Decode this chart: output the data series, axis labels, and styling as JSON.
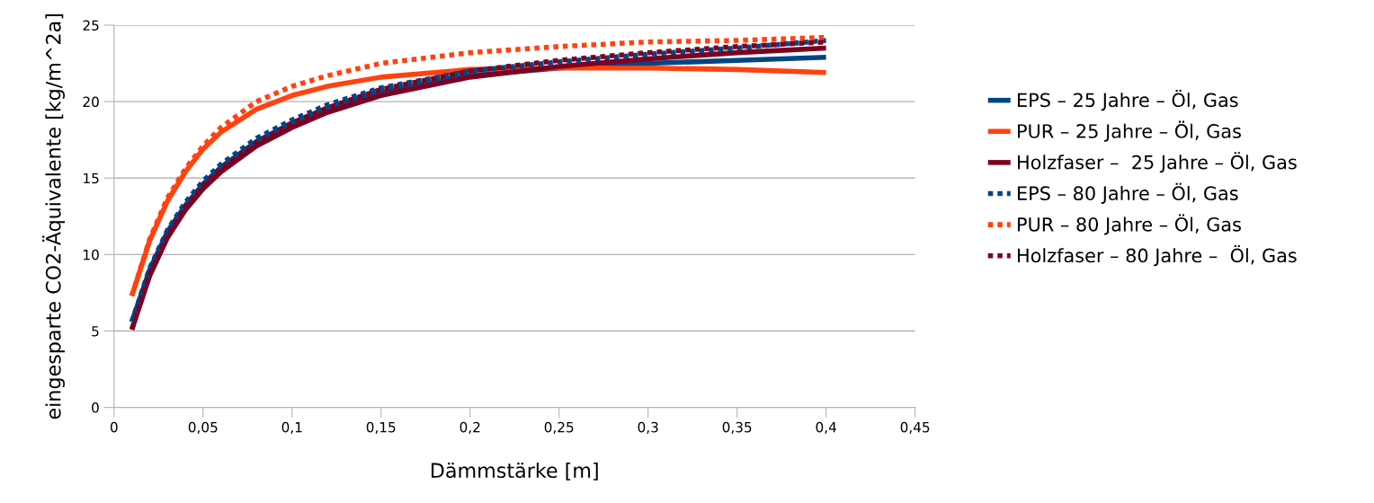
{
  "chart_data": {
    "type": "line",
    "xlabel": "Dämmstärke [m]",
    "ylabel": "eingesparte CO2-Äquivalente [kg/m^2a]",
    "x": [
      0.01,
      0.02,
      0.03,
      0.04,
      0.05,
      0.06,
      0.08,
      0.1,
      0.12,
      0.15,
      0.2,
      0.25,
      0.3,
      0.35,
      0.4
    ],
    "xlim": [
      0,
      0.45
    ],
    "xticks": [
      0,
      {
        "value": 0.05,
        "label": "0,05"
      },
      {
        "value": 0.1,
        "label": "0,1"
      },
      {
        "value": 0.15,
        "label": "0,15"
      },
      {
        "value": 0.2,
        "label": "0,2"
      },
      {
        "value": 0.25,
        "label": "0,25"
      },
      {
        "value": 0.3,
        "label": "0,3"
      },
      {
        "value": 0.35,
        "label": "0,35"
      },
      {
        "value": 0.4,
        "label": "0,4"
      },
      {
        "value": 0.45,
        "label": "0,45"
      }
    ],
    "ylim": [
      0,
      25
    ],
    "yticks": [
      0,
      5,
      10,
      15,
      20,
      25
    ],
    "grid": "y",
    "legend": "right",
    "marker": "none",
    "series": [
      {
        "name": "EPS – 25 Jahre – Öl, Gas",
        "color": "#004586",
        "line_style": "solid",
        "values": [
          5.6,
          9.0,
          11.5,
          13.2,
          14.6,
          15.7,
          17.4,
          18.6,
          19.5,
          20.6,
          21.7,
          22.2,
          22.5,
          22.7,
          22.9
        ]
      },
      {
        "name": "PUR – 25 Jahre – Öl, Gas",
        "color": "#ff420e",
        "line_style": "solid",
        "values": [
          7.3,
          10.9,
          13.5,
          15.4,
          16.9,
          18.0,
          19.5,
          20.4,
          21.0,
          21.6,
          22.1,
          22.2,
          22.2,
          22.1,
          21.9
        ]
      },
      {
        "name": "Holzfaser –  25 Jahre – Öl, Gas",
        "color": "#7e0021",
        "line_style": "solid",
        "values": [
          5.1,
          8.6,
          11.1,
          12.9,
          14.3,
          15.4,
          17.1,
          18.3,
          19.3,
          20.4,
          21.6,
          22.3,
          22.8,
          23.2,
          23.5
        ]
      },
      {
        "name": "EPS – 80 Jahre – Öl, Gas",
        "color": "#004586",
        "line_style": "dotted",
        "values": [
          5.6,
          9.1,
          11.6,
          13.4,
          14.8,
          15.9,
          17.6,
          18.8,
          19.8,
          20.9,
          22.0,
          22.6,
          23.1,
          23.5,
          24.0
        ]
      },
      {
        "name": "PUR – 80 Jahre – Öl, Gas",
        "color": "#ff420e",
        "line_style": "dotted",
        "values": [
          7.3,
          11.0,
          13.7,
          15.6,
          17.1,
          18.3,
          20.0,
          21.0,
          21.7,
          22.5,
          23.2,
          23.6,
          23.9,
          24.0,
          24.2
        ]
      },
      {
        "name": "Holzfaser – 80 Jahre –  Öl, Gas",
        "color": "#7e0021",
        "line_style": "dotted",
        "values": [
          5.1,
          8.7,
          11.2,
          13.1,
          14.5,
          15.6,
          17.3,
          18.6,
          19.6,
          20.8,
          22.0,
          22.7,
          23.2,
          23.6,
          23.9
        ]
      }
    ]
  }
}
